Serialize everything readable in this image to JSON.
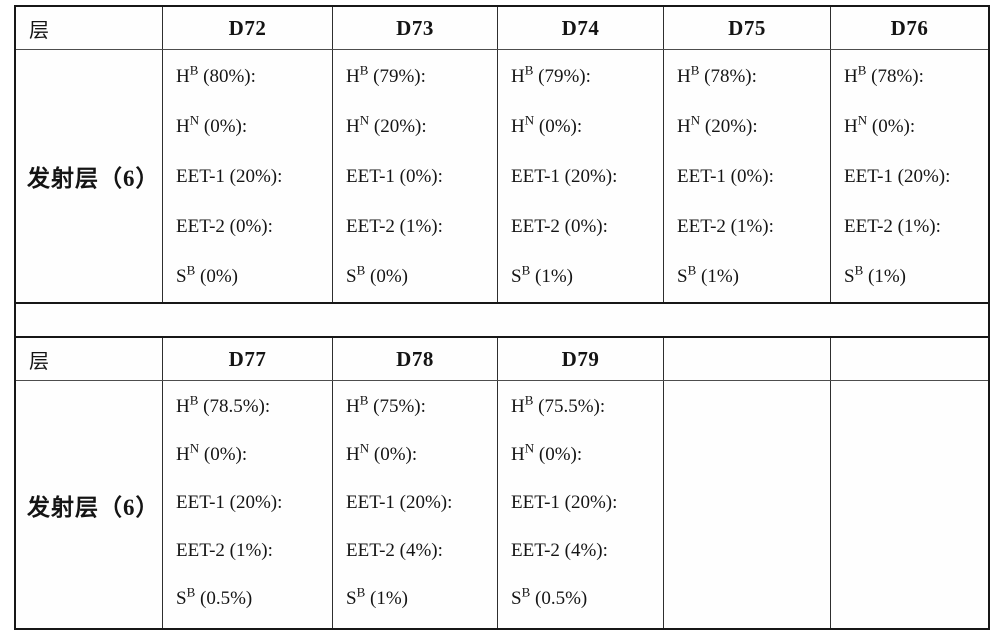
{
  "document": {
    "background": "#ffffff",
    "text_color": "#141414",
    "border_color": "#171717",
    "description": "patent-style composition table, emission layer devices D72-D79"
  },
  "tables": [
    {
      "header_label": "层",
      "columns": [
        "D72",
        "D73",
        "D74",
        "D75",
        "D76"
      ],
      "row_label": "发射层（6）",
      "cells": [
        {
          "device": "D72",
          "lines": [
            {
              "t": "H",
              "s": "B",
              "r": " (80%):"
            },
            {
              "t": "H",
              "s": "N",
              "r": " (0%):"
            },
            {
              "t": "EET-1 (20%):",
              "s": "",
              "r": ""
            },
            {
              "t": "EET-2 (0%):",
              "s": "",
              "r": ""
            },
            {
              "t": "S",
              "s": "B",
              "r": " (0%)"
            }
          ]
        },
        {
          "device": "D73",
          "lines": [
            {
              "t": "H",
              "s": "B",
              "r": " (79%):"
            },
            {
              "t": "H",
              "s": "N",
              "r": " (20%):"
            },
            {
              "t": "EET-1 (0%):",
              "s": "",
              "r": ""
            },
            {
              "t": "EET-2 (1%):",
              "s": "",
              "r": ""
            },
            {
              "t": "S",
              "s": "B",
              "r": " (0%)"
            }
          ]
        },
        {
          "device": "D74",
          "lines": [
            {
              "t": "H",
              "s": "B",
              "r": " (79%):"
            },
            {
              "t": "H",
              "s": "N",
              "r": " (0%):"
            },
            {
              "t": "EET-1 (20%):",
              "s": "",
              "r": ""
            },
            {
              "t": "EET-2 (0%):",
              "s": "",
              "r": ""
            },
            {
              "t": "S",
              "s": "B",
              "r": " (1%)"
            }
          ]
        },
        {
          "device": "D75",
          "lines": [
            {
              "t": "H",
              "s": "B",
              "r": " (78%):"
            },
            {
              "t": "H",
              "s": "N",
              "r": " (20%):"
            },
            {
              "t": "EET-1 (0%):",
              "s": "",
              "r": ""
            },
            {
              "t": "EET-2 (1%):",
              "s": "",
              "r": ""
            },
            {
              "t": "S",
              "s": "B",
              "r": " (1%)"
            }
          ]
        },
        {
          "device": "D76",
          "lines": [
            {
              "t": "H",
              "s": "B",
              "r": " (78%):"
            },
            {
              "t": "H",
              "s": "N",
              "r": " (0%):"
            },
            {
              "t": "EET-1 (20%):",
              "s": "",
              "r": ""
            },
            {
              "t": "EET-2 (1%):",
              "s": "",
              "r": ""
            },
            {
              "t": "S",
              "s": "B",
              "r": " (1%)"
            }
          ]
        }
      ]
    },
    {
      "header_label": "层",
      "columns": [
        "D77",
        "D78",
        "D79",
        "",
        ""
      ],
      "row_label": "发射层（6）",
      "cells": [
        {
          "device": "D77",
          "lines": [
            {
              "t": "H",
              "s": "B",
              "r": " (78.5%):"
            },
            {
              "t": "H",
              "s": "N",
              "r": " (0%):"
            },
            {
              "t": "EET-1 (20%):",
              "s": "",
              "r": ""
            },
            {
              "t": "EET-2 (1%):",
              "s": "",
              "r": ""
            },
            {
              "t": "S",
              "s": "B",
              "r": " (0.5%)"
            }
          ]
        },
        {
          "device": "D78",
          "lines": [
            {
              "t": "H",
              "s": "B",
              "r": " (75%):"
            },
            {
              "t": "H",
              "s": "N",
              "r": " (0%):"
            },
            {
              "t": "EET-1 (20%):",
              "s": "",
              "r": ""
            },
            {
              "t": "EET-2 (4%):",
              "s": "",
              "r": ""
            },
            {
              "t": "S",
              "s": "B",
              "r": " (1%)"
            }
          ]
        },
        {
          "device": "D79",
          "lines": [
            {
              "t": "H",
              "s": "B",
              "r": " (75.5%):"
            },
            {
              "t": "H",
              "s": "N",
              "r": " (0%):"
            },
            {
              "t": "EET-1 (20%):",
              "s": "",
              "r": ""
            },
            {
              "t": "EET-2 (4%):",
              "s": "",
              "r": ""
            },
            {
              "t": "S",
              "s": "B",
              "r": " (0.5%)"
            }
          ]
        },
        {
          "device": "",
          "lines": []
        },
        {
          "device": "",
          "lines": []
        }
      ]
    }
  ]
}
